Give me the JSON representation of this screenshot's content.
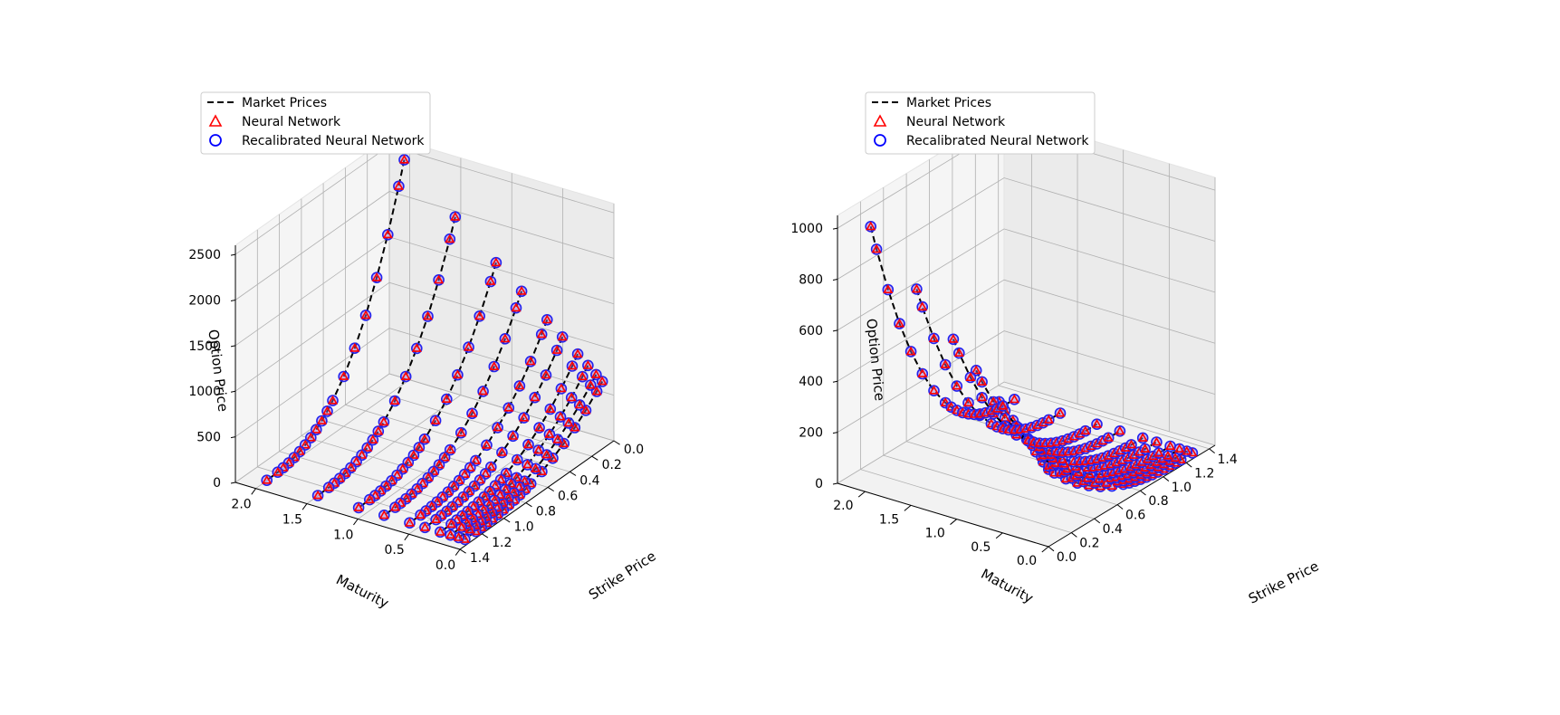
{
  "colors": {
    "market": "#000000",
    "neural_network": "#ff0000",
    "recalibrated": "#0000ff"
  },
  "legend": {
    "entries": [
      "Market Prices",
      "Neural Network",
      "Recalibrated Neural Network"
    ]
  },
  "chart_data": [
    {
      "type": "scatter",
      "subtype": "3d-line-scatter",
      "xlabel": "Strike Price",
      "ylabel": "Maturity",
      "zlabel": "Option Price",
      "x_ticks": [
        "0.0",
        "0.2",
        "0.4",
        "0.6",
        "0.8",
        "1.0",
        "1.2",
        "1.4"
      ],
      "y_ticks": [
        "0.0",
        "0.5",
        "1.0",
        "1.5",
        "2.0"
      ],
      "z_ticks": [
        "0",
        "500",
        "1000",
        "1500",
        "2000",
        "2500"
      ],
      "xlim": [
        0,
        1.4
      ],
      "ylim": [
        0,
        2.2
      ],
      "zlim": [
        0,
        2600
      ],
      "grid": true,
      "legend_position": "upper-left",
      "maturities": [
        0.06,
        0.12,
        0.2,
        0.3,
        0.45,
        0.6,
        0.85,
        1.1,
        1.5,
        2.0
      ],
      "strikes": [
        0.05,
        0.1,
        0.2,
        0.3,
        0.4,
        0.5,
        0.6,
        0.7,
        0.75,
        0.8,
        0.85,
        0.9,
        0.95,
        1.0,
        1.05,
        1.1,
        1.15,
        1.2,
        1.3
      ],
      "max_price": 2450,
      "series": [
        {
          "name": "Market Prices",
          "style": "dashed-line"
        },
        {
          "name": "Neural Network",
          "marker": "triangle"
        },
        {
          "name": "Recalibrated Neural Network",
          "marker": "circle"
        }
      ]
    },
    {
      "type": "scatter",
      "subtype": "3d-line-scatter",
      "xlabel": "Strike Price",
      "ylabel": "Maturity",
      "zlabel": "Option Price",
      "x_ticks": [
        "0.0",
        "0.2",
        "0.4",
        "0.6",
        "0.8",
        "1.0",
        "1.2",
        "1.4"
      ],
      "y_ticks": [
        "0.0",
        "0.5",
        "1.0",
        "1.5",
        "2.0"
      ],
      "z_ticks": [
        "0",
        "200",
        "400",
        "600",
        "800",
        "1000"
      ],
      "xlim": [
        0,
        1.45
      ],
      "ylim": [
        0,
        2.3
      ],
      "zlim": [
        0,
        1050
      ],
      "grid": true,
      "legend_position": "upper-left",
      "maturities": [
        0.06,
        0.12,
        0.2,
        0.3,
        0.45,
        0.6,
        0.85,
        1.1,
        1.5,
        2.0
      ],
      "strikes": [
        0.05,
        0.1,
        0.2,
        0.3,
        0.4,
        0.5,
        0.6,
        0.7,
        0.75,
        0.8,
        0.85,
        0.9,
        0.95,
        1.0,
        1.05,
        1.1,
        1.15,
        1.2,
        1.3
      ],
      "max_price": 1020,
      "series": [
        {
          "name": "Market Prices",
          "style": "dashed-line"
        },
        {
          "name": "Neural Network",
          "marker": "triangle"
        },
        {
          "name": "Recalibrated Neural Network",
          "marker": "circle"
        }
      ]
    }
  ]
}
